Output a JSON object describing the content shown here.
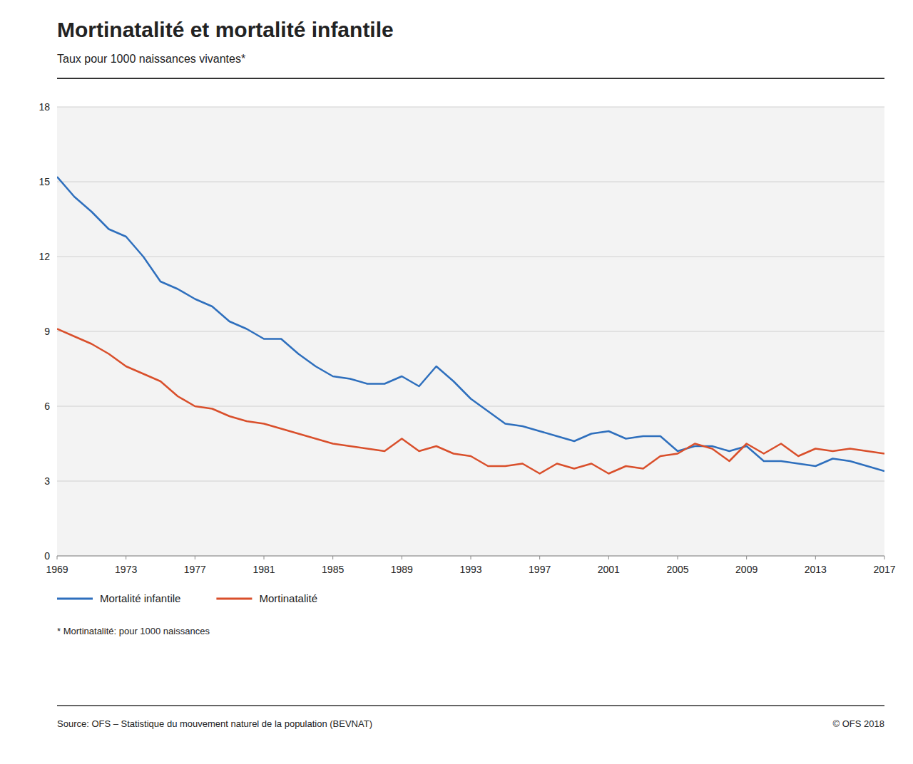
{
  "chart_data": {
    "type": "line",
    "title": "Mortinatalité et mortalité infantile",
    "subtitle": "Taux pour 1000 naissances vivantes*",
    "annotations": [
      "* Mortinatalité: pour 1000 naissances",
      "Source: OFS – Statistique du mouvement naturel de la population (BEVNAT)",
      "© OFS 2018"
    ],
    "x": [
      1969,
      1970,
      1971,
      1972,
      1973,
      1974,
      1975,
      1976,
      1977,
      1978,
      1979,
      1980,
      1981,
      1982,
      1983,
      1984,
      1985,
      1986,
      1987,
      1988,
      1989,
      1990,
      1991,
      1992,
      1993,
      1994,
      1995,
      1996,
      1997,
      1998,
      1999,
      2000,
      2001,
      2002,
      2003,
      2004,
      2005,
      2006,
      2007,
      2008,
      2009,
      2010,
      2011,
      2012,
      2013,
      2014,
      2015,
      2016,
      2017
    ],
    "series": [
      {
        "name": "Mortalité infantile",
        "color": "#2E6FBD",
        "values": [
          15.2,
          14.4,
          13.8,
          13.1,
          12.8,
          12.0,
          11.0,
          10.7,
          10.3,
          10.0,
          9.4,
          9.1,
          8.7,
          8.7,
          8.1,
          7.6,
          7.2,
          7.1,
          6.9,
          6.9,
          7.2,
          6.8,
          7.6,
          7.0,
          6.3,
          5.8,
          5.3,
          5.2,
          5.0,
          4.8,
          4.6,
          4.9,
          5.0,
          4.7,
          4.8,
          4.8,
          4.2,
          4.4,
          4.4,
          4.2,
          4.4,
          3.8,
          3.8,
          3.7,
          3.6,
          3.9,
          3.8,
          3.6,
          3.4
        ]
      },
      {
        "name": "Mortinatalité",
        "color": "#D94F2B",
        "values": [
          9.1,
          8.8,
          8.5,
          8.1,
          7.6,
          7.3,
          7.0,
          6.4,
          6.0,
          5.9,
          5.6,
          5.4,
          5.3,
          5.1,
          4.9,
          4.7,
          4.5,
          4.4,
          4.3,
          4.2,
          4.7,
          4.2,
          4.4,
          4.1,
          4.0,
          3.6,
          3.6,
          3.7,
          3.3,
          3.7,
          3.5,
          3.7,
          3.3,
          3.6,
          3.5,
          4.0,
          4.1,
          4.5,
          4.3,
          3.8,
          4.5,
          4.1,
          4.5,
          4.0,
          4.3,
          4.2,
          4.3,
          4.2,
          4.1
        ]
      }
    ],
    "xlim": [
      1969,
      2017
    ],
    "xticks": [
      1969,
      1973,
      1977,
      1981,
      1985,
      1989,
      1993,
      1997,
      2001,
      2005,
      2009,
      2013,
      2017
    ],
    "ylim": [
      0,
      18
    ],
    "yticks": [
      0,
      3,
      6,
      9,
      12,
      15,
      18
    ],
    "grid": true,
    "legend": "bottom"
  }
}
